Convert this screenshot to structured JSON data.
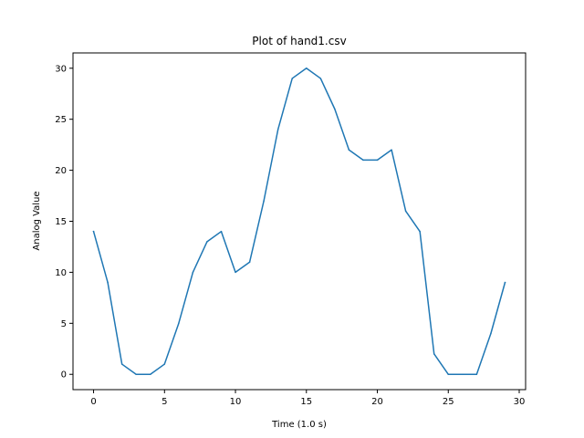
{
  "chart_data": {
    "type": "line",
    "title": "Plot of hand1.csv",
    "xlabel": "Time (1.0 s)",
    "ylabel": "Analog Value",
    "xlim": [
      -1.45,
      30.45
    ],
    "ylim": [
      -1.5,
      31.5
    ],
    "xticks": [
      0,
      5,
      10,
      15,
      20,
      25,
      30
    ],
    "yticks": [
      0,
      5,
      10,
      15,
      20,
      25,
      30
    ],
    "grid": false,
    "series": [
      {
        "color": "#1f77b4",
        "x": [
          0,
          1,
          2,
          3,
          4,
          5,
          6,
          7,
          8,
          9,
          10,
          11,
          12,
          13,
          14,
          15,
          16,
          17,
          18,
          19,
          20,
          21,
          22,
          23,
          24,
          25,
          26,
          27,
          28,
          29
        ],
        "y": [
          14,
          9,
          1,
          0,
          0,
          1,
          5,
          10,
          13,
          14,
          10,
          11,
          17,
          24,
          29,
          30,
          29,
          26,
          22,
          21,
          21,
          22,
          16,
          14,
          2,
          0,
          0,
          0,
          4,
          9
        ]
      }
    ]
  }
}
